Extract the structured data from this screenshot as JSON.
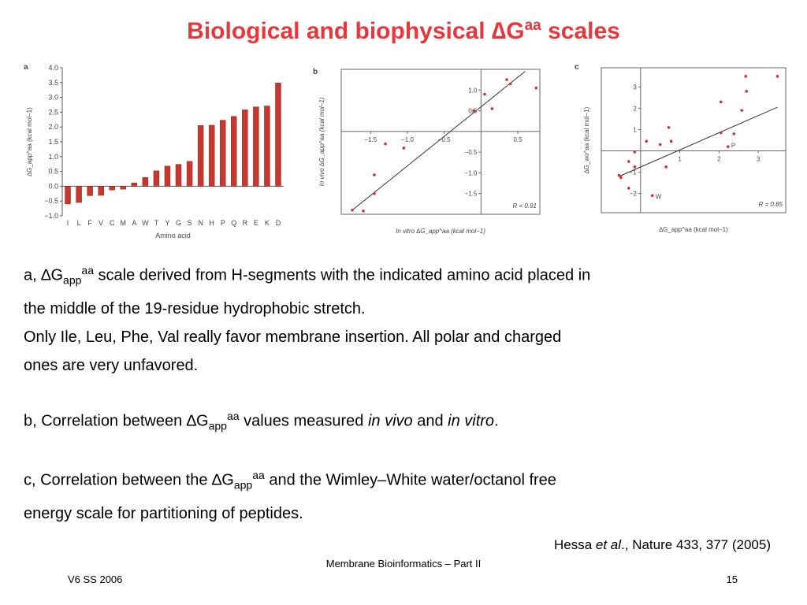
{
  "title": {
    "main": "Biological and biophysical ",
    "delta": "∆G",
    "sup": "aa",
    "tail": " scales"
  },
  "chart_data": [
    {
      "panel": "a",
      "type": "bar",
      "xlabel": "Amino acid",
      "ylabel": "∆G_app^aa (kcal mol−1)",
      "ylim": [
        -1.0,
        4.0
      ],
      "yticks": [
        "4.0",
        "3.5",
        "3.0",
        "2.5",
        "2.0",
        "1.5",
        "1.0",
        "0.5",
        "0.0",
        "−0.5",
        "−1.0"
      ],
      "categories": [
        "I",
        "L",
        "F",
        "V",
        "C",
        "M",
        "A",
        "W",
        "T",
        "Y",
        "G",
        "S",
        "N",
        "H",
        "P",
        "Q",
        "R",
        "E",
        "K",
        "D"
      ],
      "values": [
        -0.6,
        -0.55,
        -0.32,
        -0.31,
        -0.13,
        -0.1,
        0.11,
        0.3,
        0.52,
        0.68,
        0.74,
        0.84,
        2.05,
        2.06,
        2.23,
        2.36,
        2.58,
        2.68,
        2.71,
        3.49
      ],
      "bar_color": "#c8372d"
    },
    {
      "panel": "b",
      "type": "scatter",
      "xlabel": "In vitro ∆G_app^aa (kcal mol−1)",
      "ylabel": "In vivo ∆G_app^aa (kcal mol−1)",
      "xticks": [
        "−1.5",
        "−1.0",
        "−0.5",
        "0.5"
      ],
      "yticks": [
        "1.0",
        "0.5",
        "−0.5",
        "−1.0",
        "−1.5"
      ],
      "xlim": [
        -1.9,
        0.8
      ],
      "ylim": [
        -2.0,
        1.5
      ],
      "annotation": "R = 0.91",
      "points": [
        [
          -1.75,
          -1.9
        ],
        [
          -1.6,
          -1.92
        ],
        [
          -1.45,
          -1.5
        ],
        [
          -1.45,
          -1.05
        ],
        [
          -1.3,
          -0.3
        ],
        [
          -1.05,
          -0.4
        ],
        [
          -0.1,
          0.5
        ],
        [
          0.05,
          0.9
        ],
        [
          0.15,
          0.55
        ],
        [
          0.35,
          1.25
        ],
        [
          0.4,
          1.15
        ],
        [
          0.75,
          1.05
        ]
      ],
      "fit_line": [
        [
          -1.75,
          -1.9
        ],
        [
          0.6,
          1.45
        ]
      ]
    },
    {
      "panel": "c",
      "type": "scatter",
      "xlabel": "∆G_app^aa (kcal mol−1)",
      "ylabel": "∆G_wo^aa (kcal mol−1)",
      "xticks": [
        "1",
        "2",
        "3"
      ],
      "yticks": [
        "3",
        "2",
        "1",
        "−1",
        "−2"
      ],
      "xlim": [
        -1.0,
        3.7
      ],
      "ylim": [
        -2.9,
        3.9
      ],
      "annotation": "R = 0.85",
      "labels": [
        {
          "text": "P",
          "x": 2.23,
          "y": 0.3
        },
        {
          "text": "W",
          "x": 0.3,
          "y": -2.1
        }
      ],
      "points": [
        [
          -0.55,
          -1.15
        ],
        [
          -0.5,
          -1.25
        ],
        [
          -0.3,
          -1.75
        ],
        [
          -0.3,
          -0.5
        ],
        [
          -0.15,
          -0.75
        ],
        [
          -0.15,
          -0.05
        ],
        [
          0.15,
          0.45
        ],
        [
          0.3,
          -2.1
        ],
        [
          0.5,
          0.3
        ],
        [
          0.65,
          -0.75
        ],
        [
          0.72,
          1.1
        ],
        [
          0.78,
          0.45
        ],
        [
          2.05,
          2.3
        ],
        [
          2.05,
          0.85
        ],
        [
          2.23,
          0.2
        ],
        [
          2.38,
          0.8
        ],
        [
          2.58,
          1.9
        ],
        [
          2.68,
          3.5
        ],
        [
          2.7,
          2.8
        ],
        [
          3.49,
          3.5
        ]
      ],
      "fit_line": [
        [
          -0.55,
          -1.2
        ],
        [
          3.49,
          2.05
        ]
      ]
    }
  ],
  "paragraphs": {
    "a": {
      "lead": "a, ",
      "delta": "∆G",
      "sub": "app",
      "sup": "aa",
      "line1_rest": " scale derived from H-segments with the indicated amino acid placed in",
      "line2": "the middle of the 19-residue hydrophobic stretch.",
      "line3": "Only Ile, Leu, Phe, Val really favor membrane insertion. All polar and charged",
      "line4": "ones are very unfavored."
    },
    "b": {
      "lead": "b, Correlation between ",
      "delta": "∆G",
      "sub": "app",
      "sup": "aa",
      "mid": " values measured ",
      "em1": "in vivo",
      "and": " and ",
      "em2": "in vitro",
      "end": "."
    },
    "c": {
      "lead": "c, Correlation between the ",
      "delta": "∆G",
      "sub": "app",
      "sup": "aa",
      "rest": " and the Wimley–White water/octanol free",
      "line2": "energy scale for partitioning of peptides."
    }
  },
  "citation": {
    "author": "Hessa ",
    "etal": "et al",
    "rest": "., Nature 433, 377 (2005)"
  },
  "footer": {
    "center": "Membrane Bioinformatics – Part II",
    "left": "V6 SS 2006",
    "right": "15"
  }
}
